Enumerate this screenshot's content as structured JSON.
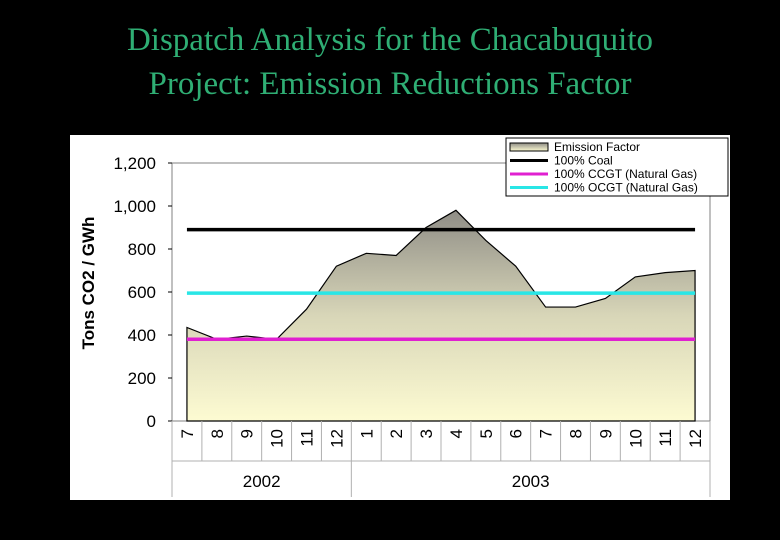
{
  "title": {
    "line1": "Dispatch Analysis for the Chacabuquito",
    "line2": "Project: Emission Reductions Factor"
  },
  "chart_data": {
    "type": "area",
    "ylabel": "Tons CO2 / GWh",
    "ylim": [
      0,
      1200
    ],
    "yticks": [
      "0",
      "200",
      "400",
      "600",
      "800",
      "1,000",
      "1,200"
    ],
    "yticks_values": [
      0,
      200,
      400,
      600,
      800,
      1000,
      1200
    ],
    "grid": false,
    "legend_position": "top-right",
    "categories": [
      "7",
      "8",
      "9",
      "10",
      "11",
      "12",
      "1",
      "2",
      "3",
      "4",
      "5",
      "6",
      "7",
      "8",
      "9",
      "10",
      "11",
      "12"
    ],
    "year_groups": [
      {
        "label": "2002",
        "count": 6
      },
      {
        "label": "2003",
        "count": 12
      }
    ],
    "series": [
      {
        "name": "Emission Factor",
        "style": "area",
        "color": "#fdfbd0",
        "values": [
          435,
          380,
          395,
          380,
          520,
          720,
          780,
          770,
          900,
          980,
          840,
          720,
          530,
          530,
          570,
          670,
          690,
          700
        ]
      },
      {
        "name": "100% Coal",
        "style": "line",
        "color": "#000000",
        "values": [
          890,
          890,
          890,
          890,
          890,
          890,
          890,
          890,
          890,
          890,
          890,
          890,
          890,
          890,
          890,
          890,
          890,
          890
        ]
      },
      {
        "name": "100% CCGT (Natural Gas)",
        "style": "line",
        "color": "#e020d0",
        "values": [
          380,
          380,
          380,
          380,
          380,
          380,
          380,
          380,
          380,
          380,
          380,
          380,
          380,
          380,
          380,
          380,
          380,
          380
        ]
      },
      {
        "name": "100% OCGT (Natural Gas)",
        "style": "line",
        "color": "#29e6e6",
        "values": [
          595,
          595,
          595,
          595,
          595,
          595,
          595,
          595,
          595,
          595,
          595,
          595,
          595,
          595,
          595,
          595,
          595,
          595
        ]
      }
    ]
  }
}
